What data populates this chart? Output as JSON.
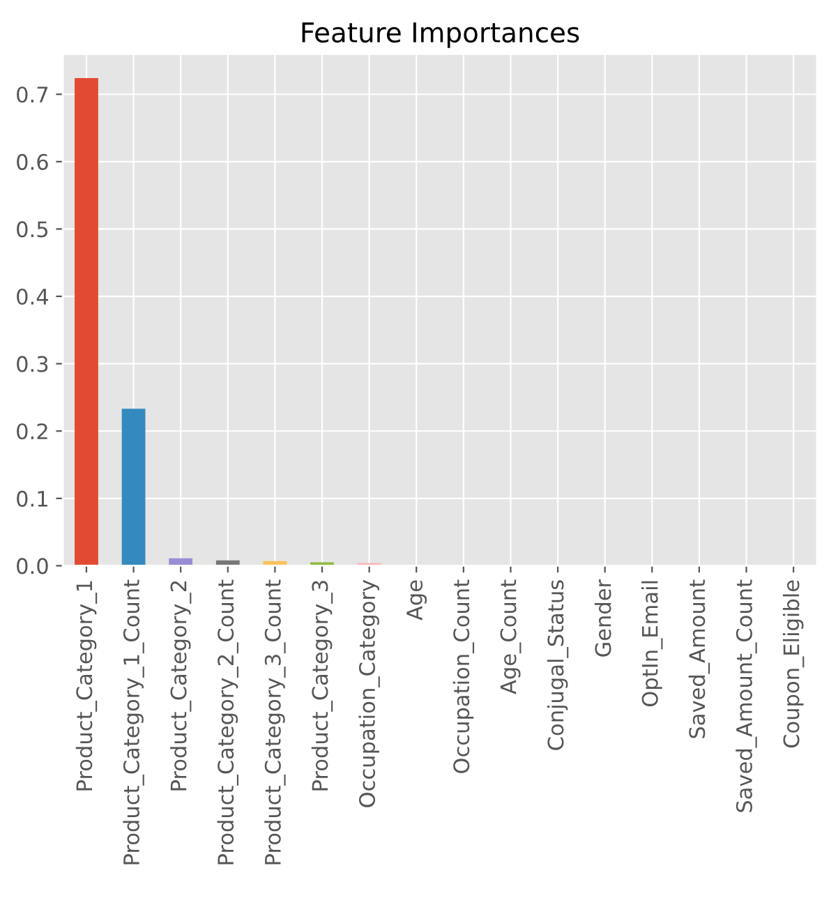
{
  "chart_data": {
    "type": "bar",
    "title": "Feature Importances",
    "categories": [
      "Product_Category_1",
      "Product_Category_1_Count",
      "Product_Category_2",
      "Product_Category_2_Count",
      "Product_Category_3_Count",
      "Product_Category_3",
      "Occupation_Category",
      "Age",
      "Occupation_Count",
      "Age_Count",
      "Conjugal_Status",
      "Gender",
      "OptIn_Email",
      "Saved_Amount",
      "Saved_Amount_Count",
      "Coupon_Eligible"
    ],
    "values": [
      0.724,
      0.233,
      0.011,
      0.008,
      0.007,
      0.005,
      0.004,
      0,
      0,
      0,
      0,
      0,
      0,
      0,
      0,
      0
    ],
    "colors": [
      "#e24a33",
      "#348abd",
      "#988ed5",
      "#777777",
      "#fbc15e",
      "#8eba42",
      "#ffb5b8",
      "#e24a33",
      "#348abd",
      "#988ed5",
      "#777777",
      "#fbc15e",
      "#8eba42",
      "#ffb5b8",
      "#e24a33",
      "#348abd"
    ],
    "ylim": [
      0,
      0.76
    ],
    "yticks": [
      {
        "value": 0,
        "label": "0.0"
      },
      {
        "value": 0.1,
        "label": "0.1"
      },
      {
        "value": 0.2,
        "label": "0.2"
      },
      {
        "value": 0.3,
        "label": "0.3"
      },
      {
        "value": 0.4,
        "label": "0.4"
      },
      {
        "value": 0.5,
        "label": "0.5"
      },
      {
        "value": 0.6,
        "label": "0.6"
      },
      {
        "value": 0.7,
        "label": "0.7"
      }
    ],
    "grid": true
  }
}
